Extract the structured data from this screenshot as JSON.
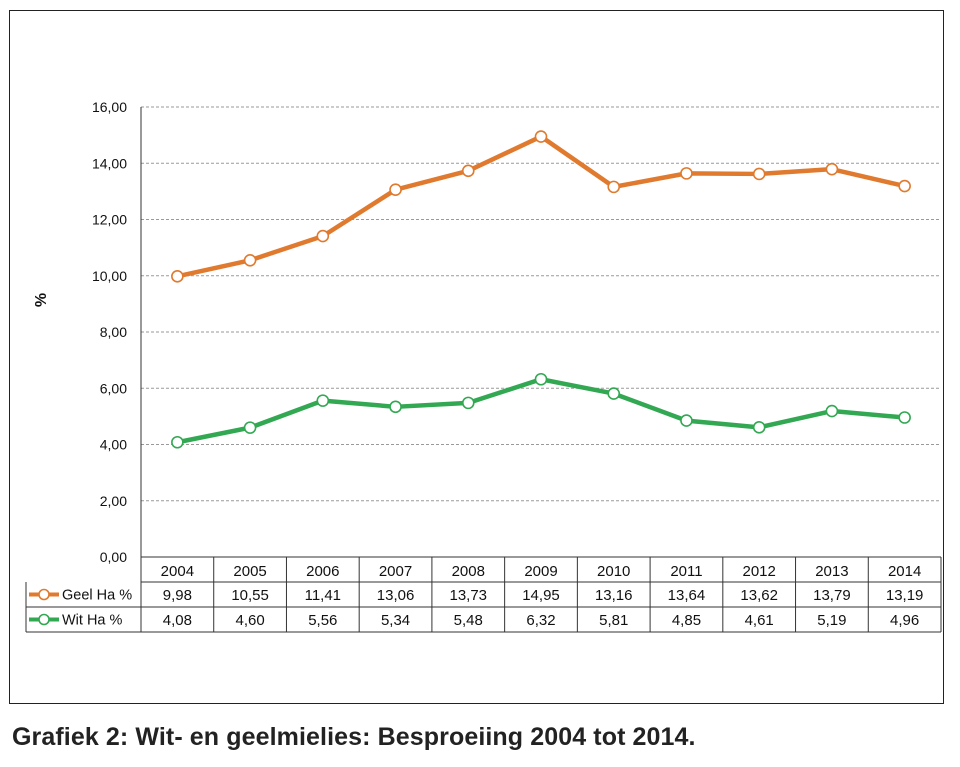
{
  "caption": "Grafiek 2: Wit- en geelmielies: Besproeiing 2004 tot 2014.",
  "chart_data": {
    "type": "line",
    "title": "",
    "ylabel": "%",
    "xlabel": "",
    "ylim": [
      0,
      16
    ],
    "yticks": [
      "0,00",
      "2,00",
      "4,00",
      "6,00",
      "8,00",
      "10,00",
      "12,00",
      "14,00",
      "16,00"
    ],
    "ytick_values": [
      0,
      2,
      4,
      6,
      8,
      10,
      12,
      14,
      16
    ],
    "grid": true,
    "legend": "data-table",
    "categories": [
      "2004",
      "2005",
      "2006",
      "2007",
      "2008",
      "2009",
      "2010",
      "2011",
      "2012",
      "2013",
      "2014"
    ],
    "series": [
      {
        "name": "Geel Ha %",
        "color": "#E07A2E",
        "values": [
          9.98,
          10.55,
          11.41,
          13.06,
          13.73,
          14.95,
          13.16,
          13.64,
          13.62,
          13.79,
          13.19
        ],
        "labels": [
          "9,98",
          "10,55",
          "11,41",
          "13,06",
          "13,73",
          "14,95",
          "13,16",
          "13,64",
          "13,62",
          "13,79",
          "13,19"
        ]
      },
      {
        "name": "Wit Ha %",
        "color": "#33A853",
        "values": [
          4.08,
          4.6,
          5.56,
          5.34,
          5.48,
          6.32,
          5.81,
          4.85,
          4.61,
          5.19,
          4.96
        ],
        "labels": [
          "4,08",
          "4,60",
          "5,56",
          "5,34",
          "5,48",
          "6,32",
          "5,81",
          "4,85",
          "4,61",
          "5,19",
          "4,96"
        ]
      }
    ]
  }
}
